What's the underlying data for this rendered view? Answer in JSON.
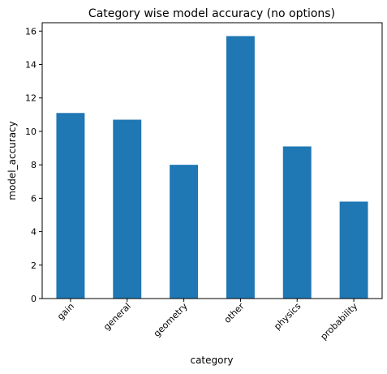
{
  "chart_data": {
    "type": "bar",
    "title": "Category wise model accuracy (no options)",
    "xlabel": "category",
    "ylabel": "model_accuracy",
    "categories": [
      "gain",
      "general",
      "geometry",
      "other",
      "physics",
      "probability"
    ],
    "values": [
      11.1,
      10.7,
      8.0,
      15.7,
      9.1,
      5.8
    ],
    "ylim": [
      0,
      16.5
    ],
    "yticks": [
      0,
      2,
      4,
      6,
      8,
      10,
      12,
      14,
      16
    ],
    "bar_color": "#1f77b4",
    "grid": false,
    "legend": "none",
    "xtick_rotation_deg": 45
  }
}
